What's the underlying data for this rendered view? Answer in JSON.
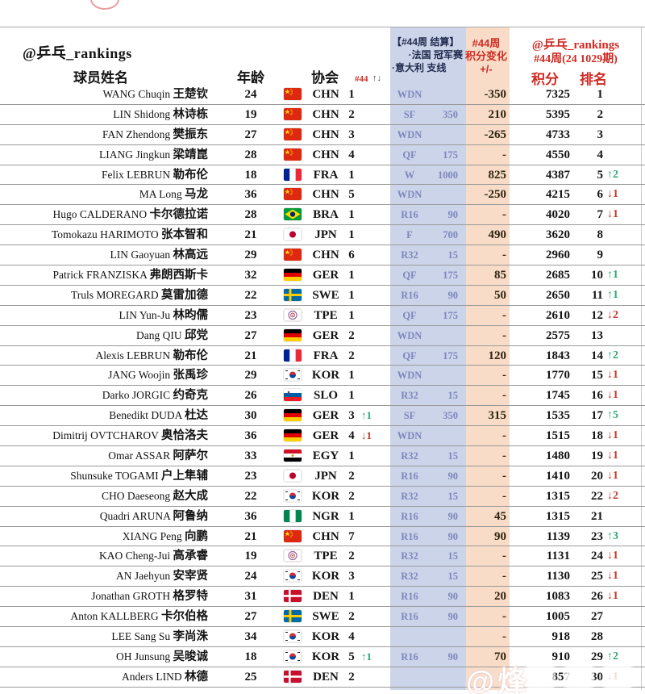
{
  "page": {
    "handle": "@乒乓_rankings",
    "watermark": "@烽"
  },
  "header": {
    "col_player": "球员姓名",
    "col_age": "年龄",
    "col_assoc": "协会",
    "col_assoc_week": "#44",
    "col_assoc_arrows": "↑↓",
    "event_box": {
      "line1": "【#44周 结算】",
      "line2": "·法国 冠军赛",
      "line3": "·意大利 支线"
    },
    "change_box": {
      "line1": "#44周",
      "line2": "积分变化",
      "line3": "+/-"
    },
    "right_box": {
      "line1": "@乒乓_rankings",
      "line2": "#44周(24 1029期)",
      "col_points": "积分",
      "col_rank": "排名"
    }
  },
  "colors": {
    "accent_red": "#cf2b23",
    "band_blue": "#ccd4e9",
    "band_orange": "#f8dcc7",
    "result_blue": "#7d87bd",
    "event_navy": "#1f2a4d",
    "rank_up_green": "#2fa872",
    "rank_down_red": "#c23b2c"
  },
  "rows": [
    {
      "latin": "WANG Chuqin",
      "cn": "王楚钦",
      "age": 24,
      "assoc": "CHN",
      "num": 1,
      "amove": "",
      "res": "WDN",
      "rpts": "",
      "chg": "-350",
      "pts": "7325",
      "rank": 1,
      "rmove": ""
    },
    {
      "latin": "LIN Shidong",
      "cn": "林诗栋",
      "age": 19,
      "assoc": "CHN",
      "num": 2,
      "amove": "",
      "res": "SF",
      "rpts": "350",
      "chg": "210",
      "pts": "5395",
      "rank": 2,
      "rmove": ""
    },
    {
      "latin": "FAN Zhendong",
      "cn": "樊振东",
      "age": 27,
      "assoc": "CHN",
      "num": 3,
      "amove": "",
      "res": "WDN",
      "rpts": "",
      "chg": "-265",
      "pts": "4733",
      "rank": 3,
      "rmove": ""
    },
    {
      "latin": "LIANG Jingkun",
      "cn": "梁靖崑",
      "age": 28,
      "assoc": "CHN",
      "num": 4,
      "amove": "",
      "res": "QF",
      "rpts": "175",
      "chg": "-",
      "pts": "4550",
      "rank": 4,
      "rmove": ""
    },
    {
      "latin": "Felix LEBRUN",
      "cn": "勒布伦",
      "age": 18,
      "assoc": "FRA",
      "num": 1,
      "amove": "",
      "res": "W",
      "rpts": "1000",
      "chg": "825",
      "pts": "4387",
      "rank": 5,
      "rmove": "↑2"
    },
    {
      "latin": "MA Long",
      "cn": "马龙",
      "age": 36,
      "assoc": "CHN",
      "num": 5,
      "amove": "",
      "res": "WDN",
      "rpts": "",
      "chg": "-250",
      "pts": "4215",
      "rank": 6,
      "rmove": "↓1"
    },
    {
      "latin": "Hugo CALDERANO",
      "cn": "卡尔德拉诺",
      "age": 28,
      "assoc": "BRA",
      "num": 1,
      "amove": "",
      "res": "R16",
      "rpts": "90",
      "chg": "-",
      "pts": "4020",
      "rank": 7,
      "rmove": "↓1"
    },
    {
      "latin": "Tomokazu HARIMOTO",
      "cn": "张本智和",
      "age": 21,
      "assoc": "JPN",
      "num": 1,
      "amove": "",
      "res": "F",
      "rpts": "700",
      "chg": "490",
      "pts": "3620",
      "rank": 8,
      "rmove": ""
    },
    {
      "latin": "LIN Gaoyuan",
      "cn": "林高远",
      "age": 29,
      "assoc": "CHN",
      "num": 6,
      "amove": "",
      "res": "R32",
      "rpts": "15",
      "chg": "-",
      "pts": "2960",
      "rank": 9,
      "rmove": ""
    },
    {
      "latin": "Patrick FRANZISKA",
      "cn": "弗朗西斯卡",
      "age": 32,
      "assoc": "GER",
      "num": 1,
      "amove": "",
      "res": "QF",
      "rpts": "175",
      "chg": "85",
      "pts": "2685",
      "rank": 10,
      "rmove": "↑1"
    },
    {
      "latin": "Truls MOREGARD",
      "cn": "莫雷加德",
      "age": 22,
      "assoc": "SWE",
      "num": 1,
      "amove": "",
      "res": "R16",
      "rpts": "90",
      "chg": "50",
      "pts": "2650",
      "rank": 11,
      "rmove": "↑1"
    },
    {
      "latin": "LIN Yun-Ju",
      "cn": "林昀儒",
      "age": 23,
      "assoc": "TPE",
      "num": 1,
      "amove": "",
      "res": "QF",
      "rpts": "175",
      "chg": "-",
      "pts": "2610",
      "rank": 12,
      "rmove": "↓2"
    },
    {
      "latin": "Dang QIU",
      "cn": "邱党",
      "age": 27,
      "assoc": "GER",
      "num": 2,
      "amove": "",
      "res": "WDN",
      "rpts": "",
      "chg": "-",
      "pts": "2575",
      "rank": 13,
      "rmove": ""
    },
    {
      "latin": "Alexis LEBRUN",
      "cn": "勒布伦",
      "age": 21,
      "assoc": "FRA",
      "num": 2,
      "amove": "",
      "res": "QF",
      "rpts": "175",
      "chg": "120",
      "pts": "1843",
      "rank": 14,
      "rmove": "↑2"
    },
    {
      "latin": "JANG Woojin",
      "cn": "张禹珍",
      "age": 29,
      "assoc": "KOR",
      "num": 1,
      "amove": "",
      "res": "WDN",
      "rpts": "",
      "chg": "-",
      "pts": "1770",
      "rank": 15,
      "rmove": "↓1"
    },
    {
      "latin": "Darko JORGIC",
      "cn": "约奇克",
      "age": 26,
      "assoc": "SLO",
      "num": 1,
      "amove": "",
      "res": "R32",
      "rpts": "15",
      "chg": "-",
      "pts": "1745",
      "rank": 16,
      "rmove": "↓1"
    },
    {
      "latin": "Benedikt DUDA",
      "cn": "杜达",
      "age": 30,
      "assoc": "GER",
      "num": 3,
      "amove": "↑1",
      "res": "SF",
      "rpts": "350",
      "chg": "315",
      "pts": "1535",
      "rank": 17,
      "rmove": "↑5"
    },
    {
      "latin": "Dimitrij OVTCHAROV",
      "cn": "奥恰洛夫",
      "age": 36,
      "assoc": "GER",
      "num": 4,
      "amove": "↓1",
      "res": "WDN",
      "rpts": "",
      "chg": "-",
      "pts": "1515",
      "rank": 18,
      "rmove": "↓1"
    },
    {
      "latin": "Omar ASSAR",
      "cn": "阿萨尔",
      "age": 33,
      "assoc": "EGY",
      "num": 1,
      "amove": "",
      "res": "R32",
      "rpts": "15",
      "chg": "-",
      "pts": "1480",
      "rank": 19,
      "rmove": "↓1"
    },
    {
      "latin": "Shunsuke TOGAMI",
      "cn": "户上隼辅",
      "age": 23,
      "assoc": "JPN",
      "num": 2,
      "amove": "",
      "res": "R16",
      "rpts": "90",
      "chg": "-",
      "pts": "1410",
      "rank": 20,
      "rmove": "↓1"
    },
    {
      "latin": "CHO Daeseong",
      "cn": "赵大成",
      "age": 22,
      "assoc": "KOR",
      "num": 2,
      "amove": "",
      "res": "R32",
      "rpts": "15",
      "chg": "-",
      "pts": "1315",
      "rank": 22,
      "rmove": "↓2"
    },
    {
      "latin": "Quadri ARUNA",
      "cn": "阿鲁纳",
      "age": 36,
      "assoc": "NGR",
      "num": 1,
      "amove": "",
      "res": "R16",
      "rpts": "90",
      "chg": "45",
      "pts": "1315",
      "rank": 21,
      "rmove": ""
    },
    {
      "latin": "XIANG Peng",
      "cn": "向鹏",
      "age": 21,
      "assoc": "CHN",
      "num": 7,
      "amove": "",
      "res": "R16",
      "rpts": "90",
      "chg": "90",
      "pts": "1139",
      "rank": 23,
      "rmove": "↑3"
    },
    {
      "latin": "KAO Cheng-Jui",
      "cn": "高承睿",
      "age": 19,
      "assoc": "TPE",
      "num": 2,
      "amove": "",
      "res": "R32",
      "rpts": "15",
      "chg": "-",
      "pts": "1131",
      "rank": 24,
      "rmove": "↓1"
    },
    {
      "latin": "AN Jaehyun",
      "cn": "安宰贤",
      "age": 24,
      "assoc": "KOR",
      "num": 3,
      "amove": "",
      "res": "R32",
      "rpts": "15",
      "chg": "-",
      "pts": "1130",
      "rank": 25,
      "rmove": "↓1"
    },
    {
      "latin": "Jonathan GROTH",
      "cn": "格罗特",
      "age": 31,
      "assoc": "DEN",
      "num": 1,
      "amove": "",
      "res": "R16",
      "rpts": "90",
      "chg": "20",
      "pts": "1083",
      "rank": 26,
      "rmove": "↓1"
    },
    {
      "latin": "Anton KALLBERG",
      "cn": "卡尔伯格",
      "age": 27,
      "assoc": "SWE",
      "num": 2,
      "amove": "",
      "res": "R16",
      "rpts": "90",
      "chg": "-",
      "pts": "1005",
      "rank": 27,
      "rmove": ""
    },
    {
      "latin": "LEE Sang Su",
      "cn": "李尚洙",
      "age": 34,
      "assoc": "KOR",
      "num": 4,
      "amove": "",
      "res": "",
      "rpts": "",
      "chg": "-",
      "pts": "918",
      "rank": 28,
      "rmove": ""
    },
    {
      "latin": "OH Junsung",
      "cn": "吴晙诚",
      "age": 18,
      "assoc": "KOR",
      "num": 5,
      "amove": "↑1",
      "res": "R16",
      "rpts": "90",
      "chg": "70",
      "pts": "910",
      "rank": 29,
      "rmove": "↑2"
    },
    {
      "latin": "Anders LIND",
      "cn": "林德",
      "age": 25,
      "assoc": "DEN",
      "num": 2,
      "amove": "",
      "res": "",
      "rpts": "",
      "chg": "",
      "pts": "857",
      "rank": 30,
      "rmove": "↓1"
    }
  ]
}
